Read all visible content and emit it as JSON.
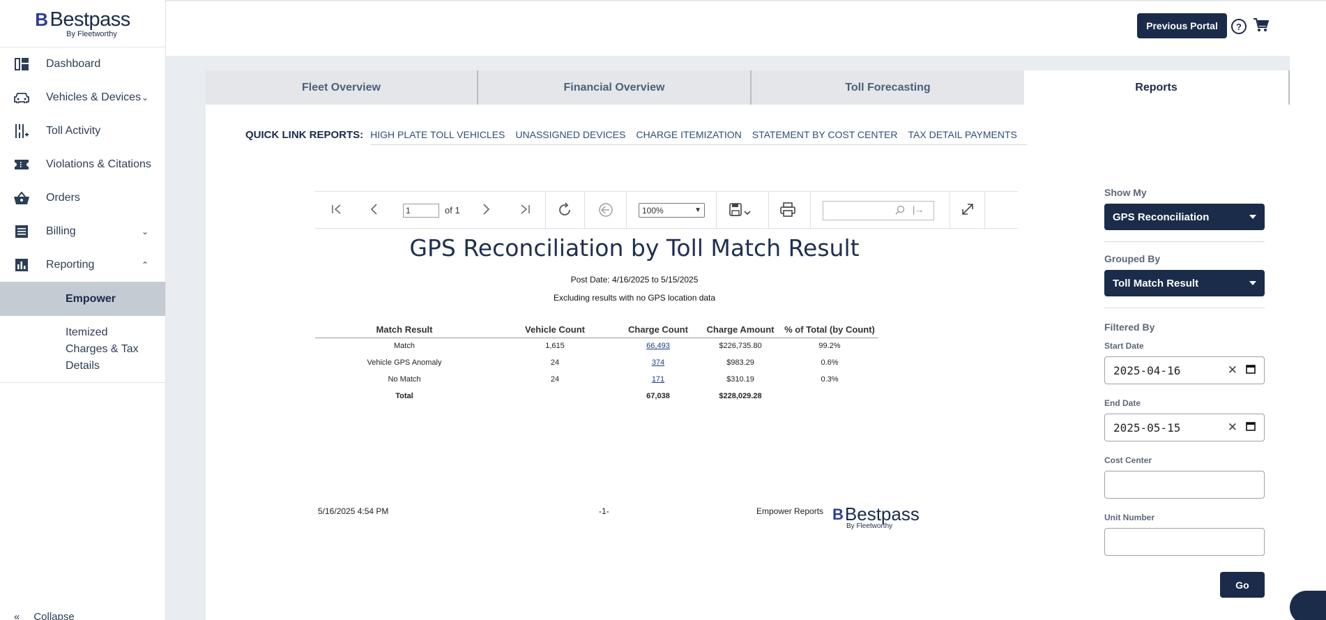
{
  "brand": {
    "name": "Bestpass",
    "mark": "B",
    "by": "By Fleetworthy"
  },
  "sidebar": {
    "items": [
      {
        "label": "Dashboard",
        "icon": "dashboard-icon"
      },
      {
        "label": "Vehicles & Devices",
        "icon": "car-icon"
      },
      {
        "label": "Toll Activity",
        "icon": "toll-icon"
      },
      {
        "label": "Violations & Citations",
        "icon": "ticket-icon"
      },
      {
        "label": "Orders",
        "icon": "basket-icon"
      },
      {
        "label": "Billing",
        "icon": "list-icon"
      },
      {
        "label": "Reporting",
        "icon": "bar-chart-icon"
      }
    ],
    "sub_items": [
      {
        "label": "Empower"
      },
      {
        "label": "Itemized Charges & Tax Details"
      }
    ],
    "collapse_label": "Collapse"
  },
  "header": {
    "previous_portal": "Previous Portal"
  },
  "tabs": [
    {
      "label": "Fleet Overview"
    },
    {
      "label": "Financial Overview"
    },
    {
      "label": "Toll Forecasting"
    },
    {
      "label": "Reports"
    }
  ],
  "quick_links": {
    "title": "QUICK LINK REPORTS:",
    "links": [
      "HIGH PLATE TOLL VEHICLES",
      "UNASSIGNED DEVICES",
      "CHARGE ITEMIZATION",
      "STATEMENT BY COST CENTER",
      "TAX DETAIL PAYMENTS"
    ]
  },
  "viewer": {
    "page_value": "1",
    "page_of": "of 1",
    "zoom": "100%"
  },
  "report": {
    "title": "GPS Reconciliation by Toll Match Result",
    "post_date": "Post Date: 4/16/2025 to 5/15/2025",
    "excluding": "Excluding results with no GPS location data",
    "columns": [
      "Match Result",
      "Vehicle Count",
      "Charge Count",
      "Charge Amount",
      "% of Total (by Count)"
    ],
    "rows": [
      {
        "result": "Match",
        "vehicles": "1,615",
        "charges": "66,493",
        "amount": "$226,735.80",
        "pct": "99.2%"
      },
      {
        "result": "Vehicle GPS Anomaly",
        "vehicles": "24",
        "charges": "374",
        "amount": "$983.29",
        "pct": "0.6%"
      },
      {
        "result": "No Match",
        "vehicles": "24",
        "charges": "171",
        "amount": "$310.19",
        "pct": "0.3%"
      }
    ],
    "total": {
      "label": "Total",
      "charges": "67,038",
      "amount": "$228,029.28"
    },
    "footer": {
      "timestamp": "5/16/2025 4:54 PM",
      "page": "-1-",
      "source": "Empower Reports"
    }
  },
  "filters": {
    "show_my_label": "Show My",
    "show_my_value": "GPS Reconciliation",
    "grouped_by_label": "Grouped By",
    "grouped_by_value": "Toll Match Result",
    "filtered_by_label": "Filtered By",
    "start_date_label": "Start Date",
    "start_date_value": "2025-04-16",
    "end_date_label": "End Date",
    "end_date_value": "2025-05-15",
    "cost_center_label": "Cost Center",
    "unit_number_label": "Unit Number",
    "go_label": "Go"
  }
}
